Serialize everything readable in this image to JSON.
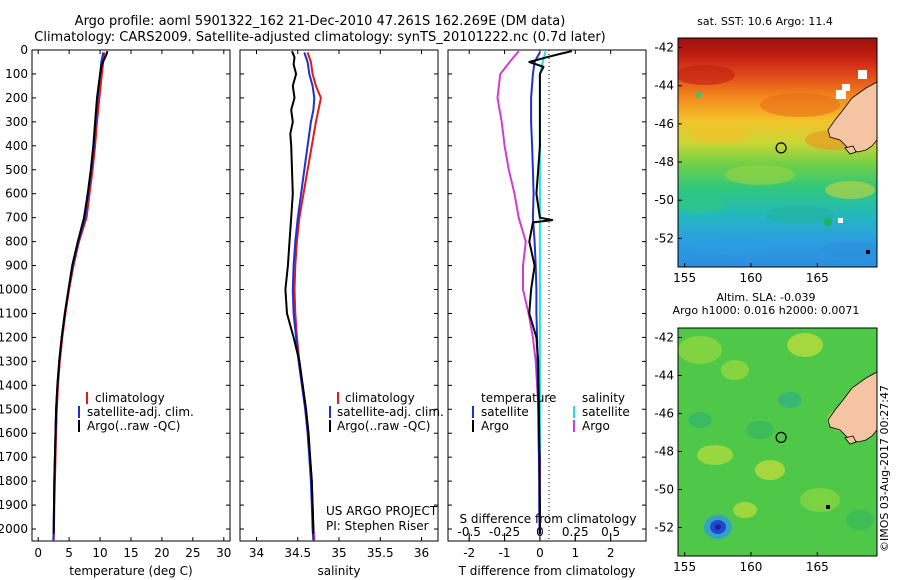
{
  "title_line1": "Argo profile: aoml 5901322_162 21-Dec-2010 47.261S 162.269E (DM data)",
  "title_line2": "Climatology: CARS2009. Satellite-adjusted climatology: synTS_20101222.nc (0.7d later)",
  "project": "US ARGO PROJECT",
  "pi": "PI: Stephen Riser",
  "map1_title": "sat. SST: 10.6 Argo: 11.4",
  "map2_title_line1": "Altim. SLA: -0.039",
  "map2_title_line2": "Argo h1000: 0.016 h2000: 0.0071",
  "copyright": "©IMOS 03-Aug-2017 00:27:47",
  "colors": {
    "climatology": "#e31a1c",
    "satellite": "#1f2fd6",
    "argo": "#000000",
    "sal_satellite": "#22e0e0",
    "sal_argo": "#d43ad4"
  },
  "chart_data": [
    {
      "type": "line",
      "xlabel": "temperature (deg C)",
      "ylabel": "",
      "xlim": [
        -1,
        31
      ],
      "ylim": [
        2050,
        0
      ],
      "xticks": [
        0,
        5,
        10,
        15,
        20,
        25,
        30
      ],
      "yticks": [
        0,
        100,
        200,
        300,
        400,
        500,
        600,
        700,
        800,
        900,
        1000,
        1100,
        1200,
        1300,
        1400,
        1500,
        1600,
        1700,
        1800,
        1900,
        2000
      ],
      "legend": [
        "climatology",
        "satellite-adj. clim.",
        "Argo(..raw -QC)"
      ],
      "series": [
        {
          "name": "climatology",
          "pressure": [
            10,
            50,
            100,
            200,
            300,
            400,
            500,
            600,
            700,
            800,
            900,
            1000,
            1100,
            1200,
            1300,
            1400,
            1500,
            1600,
            1700,
            1800,
            1900,
            2000,
            2050
          ],
          "values": [
            10.7,
            10.5,
            10.3,
            9.9,
            9.5,
            9.2,
            8.8,
            8.3,
            7.8,
            6.6,
            5.7,
            5.0,
            4.4,
            3.9,
            3.5,
            3.2,
            3.0,
            2.9,
            2.8,
            2.7,
            2.6,
            2.55,
            2.5
          ]
        },
        {
          "name": "satellite-adj. clim.",
          "pressure": [
            10,
            50,
            100,
            200,
            300,
            400,
            500,
            600,
            700,
            800,
            900,
            1000,
            1100,
            1200,
            1300,
            1400,
            1500,
            1600,
            1700,
            1800,
            1900,
            2000,
            2050
          ],
          "values": [
            10.5,
            10.2,
            10.0,
            9.6,
            9.3,
            9.0,
            8.6,
            8.1,
            7.6,
            6.5,
            5.6,
            4.9,
            4.3,
            3.8,
            3.4,
            3.1,
            2.9,
            2.8,
            2.7,
            2.6,
            2.55,
            2.5,
            2.45
          ]
        },
        {
          "name": "Argo(..raw -QC)",
          "pressure": [
            5,
            20,
            60,
            100,
            200,
            300,
            400,
            500,
            600,
            700,
            800,
            900,
            1000,
            1100,
            1200,
            1300,
            1400,
            1500,
            1600,
            1700,
            1800,
            1900,
            2000,
            2020
          ],
          "values": [
            11.2,
            11.0,
            10.3,
            10.0,
            9.5,
            9.2,
            8.9,
            8.5,
            8.0,
            7.4,
            6.4,
            5.5,
            4.9,
            4.3,
            3.8,
            3.4,
            3.1,
            2.9,
            2.8,
            2.7,
            2.6,
            2.55,
            2.5,
            2.5
          ]
        }
      ]
    },
    {
      "type": "line",
      "xlabel": "salinity",
      "ylabel": "",
      "xlim": [
        33.8,
        36.2
      ],
      "ylim": [
        2050,
        0
      ],
      "xticks": [
        34,
        34.5,
        35,
        35.5,
        36
      ],
      "legend": [
        "climatology",
        "satellite-adj. clim.",
        "Argo(..raw -QC)"
      ],
      "series": [
        {
          "name": "climatology",
          "pressure": [
            10,
            50,
            100,
            150,
            200,
            250,
            300,
            400,
            500,
            600,
            700,
            800,
            900,
            1000,
            1100,
            1200,
            1300,
            1400,
            1500,
            1600,
            1700,
            1800,
            1900,
            2000,
            2050
          ],
          "values": [
            34.62,
            34.66,
            34.68,
            34.72,
            34.78,
            34.75,
            34.72,
            34.67,
            34.62,
            34.57,
            34.52,
            34.49,
            34.47,
            34.46,
            34.47,
            34.49,
            34.52,
            34.56,
            34.6,
            34.63,
            34.65,
            34.67,
            34.68,
            34.69,
            34.7
          ]
        },
        {
          "name": "satellite-adj. clim.",
          "pressure": [
            10,
            50,
            100,
            150,
            200,
            250,
            300,
            400,
            500,
            600,
            700,
            800,
            900,
            1000,
            1100,
            1200,
            1300,
            1400,
            1500,
            1600,
            1700,
            1800,
            1900,
            2000,
            2050
          ],
          "values": [
            34.58,
            34.62,
            34.64,
            34.68,
            34.7,
            34.69,
            34.66,
            34.62,
            34.58,
            34.54,
            34.5,
            34.47,
            34.45,
            34.44,
            34.45,
            34.48,
            34.51,
            34.55,
            34.59,
            34.62,
            34.64,
            34.66,
            34.67,
            34.68,
            34.69
          ]
        },
        {
          "name": "Argo(..raw -QC)",
          "pressure": [
            5,
            30,
            60,
            100,
            150,
            200,
            250,
            300,
            350,
            400,
            500,
            600,
            700,
            800,
            900,
            1000,
            1100,
            1200,
            1300,
            1400,
            1500,
            1600,
            1700,
            1800,
            1900,
            2000,
            2020
          ],
          "values": [
            34.43,
            34.46,
            34.45,
            34.48,
            34.44,
            34.46,
            34.42,
            34.44,
            34.41,
            34.42,
            34.43,
            34.44,
            34.42,
            34.4,
            34.38,
            34.35,
            34.37,
            34.45,
            34.52,
            34.56,
            34.6,
            34.63,
            34.65,
            34.67,
            34.68,
            34.69,
            34.69
          ]
        }
      ]
    },
    {
      "type": "line",
      "xlabel": "T difference from climatology",
      "x2label": "S difference from climatology",
      "xlim": [
        -2.6,
        3.0
      ],
      "x2lim": [
        -0.65,
        0.75
      ],
      "ylim": [
        2050,
        0
      ],
      "xticks": [
        -2,
        -1,
        0,
        1,
        2
      ],
      "x2ticks": [
        -0.5,
        -0.25,
        0,
        0.25,
        0.5
      ],
      "x2ticklabels": [
        "-0.5",
        "-0.25",
        "0",
        "0.25",
        "0.5"
      ],
      "legend_temperature_header": "temperature",
      "legend_salinity_header": "salinity",
      "legend_labels": [
        "satellite",
        "Argo"
      ],
      "series": [
        {
          "name": "temperature satellite",
          "pressure": [
            10,
            50,
            100,
            200,
            300,
            400,
            500,
            600,
            700,
            800,
            900,
            1000,
            1100,
            1200,
            1300,
            1400,
            1500,
            1600,
            1700,
            1800,
            1900,
            2000,
            2020
          ],
          "values": [
            0.0,
            -0.15,
            -0.2,
            -0.25,
            -0.25,
            -0.22,
            -0.2,
            -0.18,
            -0.2,
            -0.15,
            -0.12,
            -0.1,
            -0.1,
            -0.08,
            -0.07,
            -0.06,
            -0.05,
            -0.04,
            -0.03,
            -0.02,
            -0.02,
            -0.01,
            0.0
          ]
        },
        {
          "name": "temperature Argo",
          "pressure": [
            5,
            15,
            30,
            50,
            70,
            100,
            200,
            300,
            400,
            500,
            600,
            700,
            710,
            720,
            800,
            900,
            1000,
            1100,
            1200,
            1300,
            1400,
            1500,
            1600,
            1700,
            1800,
            1900,
            2000,
            2020
          ],
          "values": [
            0.9,
            0.6,
            0.2,
            -0.3,
            0.1,
            0.0,
            0.0,
            0.0,
            0.0,
            -0.05,
            -0.1,
            0.0,
            0.35,
            -0.2,
            -0.3,
            -0.15,
            -0.25,
            -0.3,
            -0.1,
            -0.05,
            -0.04,
            -0.03,
            -0.02,
            -0.01,
            -0.01,
            0.0,
            0.0,
            0.0
          ]
        },
        {
          "name": "salinity satellite",
          "pressure": [
            5,
            50,
            100,
            200,
            400,
            600,
            800,
            1000,
            1200,
            1400,
            1600,
            1800,
            2000,
            2020
          ],
          "s_values": [
            0.04,
            0.02,
            0.0,
            0.0,
            0.0,
            0.0,
            0.0,
            0.0,
            0.0,
            0.0,
            0.0,
            0.0,
            0.0,
            0.0
          ]
        },
        {
          "name": "salinity Argo",
          "pressure": [
            5,
            40,
            100,
            200,
            300,
            400,
            500,
            600,
            700,
            800,
            900,
            1000,
            1100,
            1200,
            1300,
            1400,
            1500,
            1600,
            1700,
            1800,
            1900,
            2000,
            2020
          ],
          "s_values": [
            -0.15,
            -0.2,
            -0.28,
            -0.3,
            -0.27,
            -0.25,
            -0.22,
            -0.18,
            -0.15,
            -0.1,
            -0.12,
            -0.12,
            -0.08,
            -0.05,
            -0.03,
            -0.02,
            -0.01,
            -0.01,
            0.0,
            0.0,
            0.0,
            0.0,
            0.0
          ]
        }
      ]
    },
    {
      "type": "heatmap",
      "title": "sat. SST: 10.6 Argo: 11.4",
      "xticks": [
        155,
        160,
        165
      ],
      "yticks": [
        -42,
        -44,
        -46,
        -48,
        -50,
        -52
      ],
      "xlim": [
        154.5,
        169.5
      ],
      "ylim": [
        -53.5,
        -41.5
      ],
      "float_position": [
        162.27,
        -47.26
      ]
    },
    {
      "type": "heatmap",
      "title": "Altim. SLA: -0.039",
      "xticks": [
        155,
        160,
        165
      ],
      "yticks": [
        -42,
        -44,
        -46,
        -48,
        -50,
        -52
      ],
      "xlim": [
        154.5,
        169.5
      ],
      "ylim": [
        -53.5,
        -41.5
      ],
      "float_position": [
        162.27,
        -47.26
      ]
    }
  ]
}
